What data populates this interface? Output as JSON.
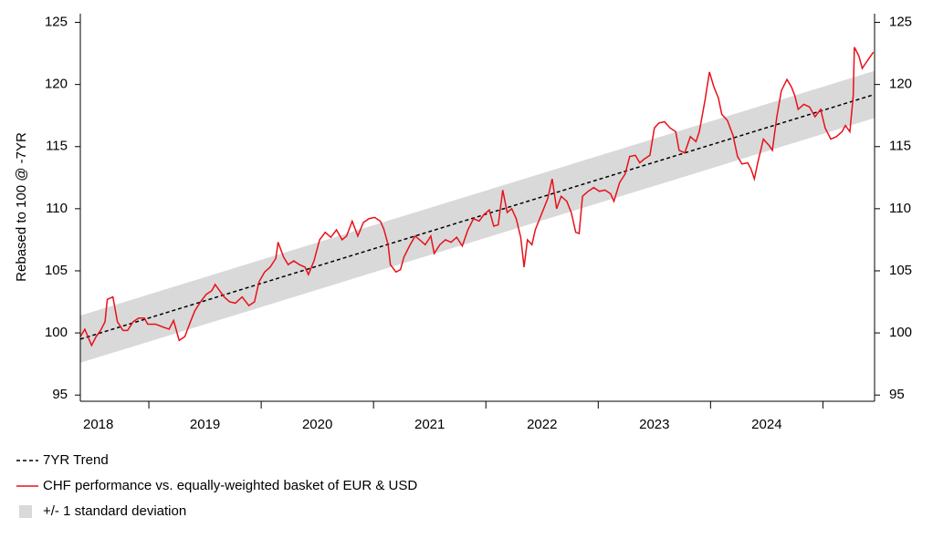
{
  "chart_data": {
    "type": "line",
    "y_label": "Rebased to 100 @ -7YR",
    "xlim": [
      2018.39,
      2025.46
    ],
    "xticks": [
      {
        "value": 2018.55,
        "label": "2018"
      },
      {
        "value": 2019.5,
        "label": "2019"
      },
      {
        "value": 2020.5,
        "label": "2020"
      },
      {
        "value": 2021.5,
        "label": "2021"
      },
      {
        "value": 2022.5,
        "label": "2022"
      },
      {
        "value": 2023.5,
        "label": "2023"
      },
      {
        "value": 2024.5,
        "label": "2024"
      }
    ],
    "x_minor_ticks": [
      2019,
      2020,
      2021,
      2022,
      2023,
      2024,
      2025
    ],
    "ylim": [
      94.5,
      125.7
    ],
    "yticks": [
      95,
      100,
      105,
      110,
      115,
      120,
      125
    ],
    "y2lim": [
      94.5,
      125.7
    ],
    "y2ticks": [
      95,
      100,
      105,
      110,
      115,
      120,
      125
    ],
    "legend": "bottom-left",
    "series": [
      {
        "name": "7YR Trend",
        "style": "dashed",
        "color": "#000000",
        "x": [
          2018.39,
          2025.46
        ],
        "values": [
          99.5,
          119.2
        ]
      },
      {
        "name": "CHF performance vs. equally-weighted basket of EUR & USD",
        "style": "solid",
        "color": "#e8111a",
        "x": [
          2018.39,
          2018.43,
          2018.49,
          2018.53,
          2018.57,
          2018.61,
          2018.63,
          2018.68,
          2018.72,
          2018.77,
          2018.81,
          2018.86,
          2018.91,
          2018.96,
          2018.99,
          2019.06,
          2019.12,
          2019.18,
          2019.22,
          2019.27,
          2019.32,
          2019.37,
          2019.41,
          2019.46,
          2019.51,
          2019.56,
          2019.59,
          2019.63,
          2019.67,
          2019.72,
          2019.77,
          2019.83,
          2019.89,
          2019.94,
          2019.98,
          2020.03,
          2020.08,
          2020.13,
          2020.15,
          2020.2,
          2020.24,
          2020.29,
          2020.34,
          2020.39,
          2020.42,
          2020.47,
          2020.52,
          2020.57,
          2020.62,
          2020.67,
          2020.72,
          2020.76,
          2020.81,
          2020.86,
          2020.91,
          2020.96,
          2021.01,
          2021.06,
          2021.09,
          2021.13,
          2021.15,
          2021.2,
          2021.24,
          2021.27,
          2021.32,
          2021.37,
          2021.41,
          2021.46,
          2021.51,
          2021.54,
          2021.59,
          2021.64,
          2021.69,
          2021.74,
          2021.79,
          2021.84,
          2021.89,
          2021.94,
          2021.98,
          2022.03,
          2022.07,
          2022.11,
          2022.15,
          2022.19,
          2022.23,
          2022.27,
          2022.31,
          2022.34,
          2022.37,
          2022.41,
          2022.44,
          2022.47,
          2022.51,
          2022.55,
          2022.59,
          2022.63,
          2022.67,
          2022.72,
          2022.76,
          2022.8,
          2022.83,
          2022.86,
          2022.91,
          2022.96,
          2023.01,
          2023.06,
          2023.11,
          2023.14,
          2023.19,
          2023.24,
          2023.28,
          2023.33,
          2023.37,
          2023.41,
          2023.46,
          2023.5,
          2023.54,
          2023.59,
          2023.64,
          2023.69,
          2023.72,
          2023.77,
          2023.82,
          2023.87,
          2023.9,
          2023.95,
          2023.99,
          2024.03,
          2024.07,
          2024.1,
          2024.15,
          2024.2,
          2024.24,
          2024.28,
          2024.33,
          2024.36,
          2024.39,
          2024.42,
          2024.47,
          2024.52,
          2024.55,
          2024.59,
          2024.63,
          2024.68,
          2024.72,
          2024.75,
          2024.78,
          2024.83,
          2024.88,
          2024.93,
          2024.98,
          2025.02,
          2025.07,
          2025.12,
          2025.17,
          2025.2,
          2025.24,
          2025.27,
          2025.28,
          2025.32,
          2025.35,
          2025.38,
          2025.41,
          2025.45
        ],
        "values": [
          99.7,
          100.3,
          99.0,
          99.7,
          100.2,
          100.9,
          102.7,
          102.9,
          100.9,
          100.2,
          100.2,
          100.9,
          101.2,
          101.2,
          100.7,
          100.7,
          100.5,
          100.3,
          101.0,
          99.4,
          99.7,
          100.9,
          101.8,
          102.5,
          103.1,
          103.4,
          103.9,
          103.4,
          102.9,
          102.5,
          102.4,
          102.9,
          102.2,
          102.5,
          104.1,
          104.9,
          105.3,
          106.0,
          107.3,
          106.1,
          105.5,
          105.8,
          105.5,
          105.3,
          104.7,
          105.8,
          107.5,
          108.1,
          107.7,
          108.3,
          107.5,
          107.8,
          109.0,
          107.8,
          108.9,
          109.2,
          109.3,
          109.0,
          108.4,
          107.1,
          105.5,
          104.9,
          105.1,
          106.1,
          107.0,
          107.8,
          107.5,
          107.1,
          107.8,
          106.4,
          107.1,
          107.5,
          107.3,
          107.7,
          107.0,
          108.3,
          109.2,
          109.0,
          109.5,
          109.9,
          108.6,
          108.7,
          111.5,
          109.7,
          110.0,
          109.2,
          107.7,
          105.3,
          107.5,
          107.1,
          108.3,
          109.0,
          109.9,
          110.8,
          112.4,
          110.0,
          111.0,
          110.6,
          109.7,
          108.1,
          108.0,
          111.0,
          111.4,
          111.7,
          111.4,
          111.5,
          111.2,
          110.6,
          112.1,
          112.8,
          114.2,
          114.3,
          113.7,
          114.0,
          114.3,
          116.5,
          116.9,
          117.0,
          116.5,
          116.2,
          114.7,
          114.5,
          115.8,
          115.4,
          116.2,
          118.7,
          121.0,
          119.8,
          118.9,
          117.6,
          117.1,
          115.9,
          114.2,
          113.6,
          113.7,
          113.2,
          112.4,
          113.7,
          115.6,
          115.1,
          114.7,
          117.4,
          119.5,
          120.4,
          119.8,
          119.1,
          118.0,
          118.4,
          118.2,
          117.4,
          118.0,
          116.5,
          115.6,
          115.8,
          116.2,
          116.7,
          116.2,
          119.1,
          123.0,
          122.3,
          121.3,
          121.7,
          122.1,
          122.6
        ]
      },
      {
        "name": "+/- 1 standard deviation",
        "style": "band",
        "color": "#d9d9d9",
        "x": [
          2018.39,
          2025.46
        ],
        "lower": [
          97.6,
          117.3
        ],
        "upper": [
          101.4,
          121.1
        ]
      }
    ]
  }
}
